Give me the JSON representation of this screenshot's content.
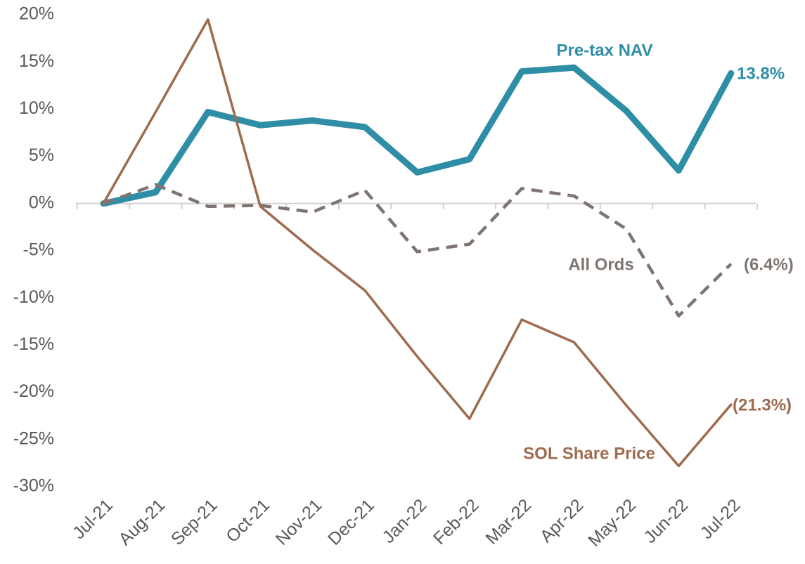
{
  "chart_data": {
    "type": "line",
    "categories": [
      "Jul-21",
      "Aug-21",
      "Sep-21",
      "Oct-21",
      "Nov-21",
      "Dec-21",
      "Jan-22",
      "Feb-22",
      "Mar-22",
      "Apr-22",
      "May-22",
      "Jun-22",
      "Jul-22"
    ],
    "series": [
      {
        "name": "Pre-tax NAV",
        "color": "#2e8ea6",
        "values": [
          0,
          1.2,
          9.7,
          8.3,
          8.8,
          8.1,
          3.3,
          4.7,
          14.0,
          14.4,
          9.8,
          3.5,
          13.8
        ],
        "value_labels": [
          null,
          null,
          null,
          null,
          null,
          null,
          null,
          null,
          null,
          null,
          null,
          null,
          "13.8%"
        ]
      },
      {
        "name": "All Ords",
        "color": "#7f7570",
        "values": [
          0,
          2.0,
          -0.3,
          -0.2,
          -0.9,
          1.4,
          -5.1,
          -4.3,
          1.6,
          0.8,
          -2.7,
          -11.9,
          -6.4
        ],
        "value_labels": [
          null,
          null,
          null,
          null,
          null,
          null,
          null,
          null,
          null,
          null,
          null,
          null,
          "(6.4%)"
        ]
      },
      {
        "name": "SOL Share Price",
        "color": "#9e6b4f",
        "values": [
          0,
          9.7,
          19.5,
          -0.3,
          -4.9,
          -9.2,
          -16.2,
          -22.8,
          -12.3,
          -14.7,
          -21.4,
          -27.8,
          -21.3
        ],
        "value_labels": [
          null,
          null,
          null,
          null,
          null,
          null,
          null,
          null,
          null,
          null,
          null,
          null,
          "(21.3%)"
        ]
      }
    ],
    "ylim": [
      -30,
      20
    ],
    "yticks": [
      {
        "value": 20,
        "label": "20%"
      },
      {
        "value": 15,
        "label": "15%"
      },
      {
        "value": 10,
        "label": "10%"
      },
      {
        "value": 5,
        "label": "5%"
      },
      {
        "value": 0,
        "label": "0%"
      },
      {
        "value": -5,
        "label": "-5%"
      },
      {
        "value": -10,
        "label": "-10%"
      },
      {
        "value": -15,
        "label": "-15%"
      },
      {
        "value": -20,
        "label": "-20%"
      },
      {
        "value": -25,
        "label": "-25%"
      },
      {
        "value": -30,
        "label": "-30%"
      }
    ],
    "grid": false
  }
}
